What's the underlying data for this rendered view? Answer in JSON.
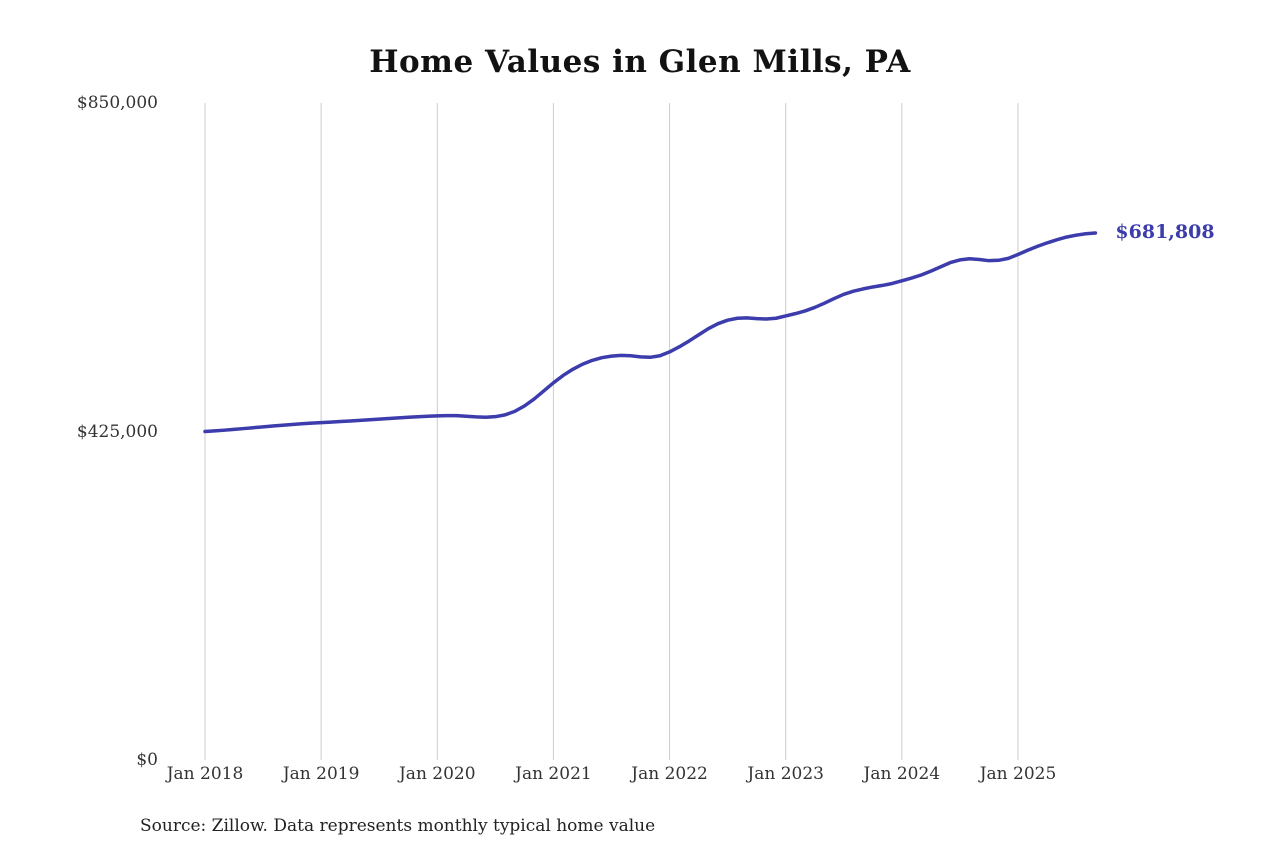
{
  "chart": {
    "title": "Home Values in Glen Mills, PA",
    "source_note": "Source: Zillow. Data represents monthly typical home value",
    "end_label": "$681,808",
    "line_color": "#3c3cac",
    "grid_color": "#cccccc",
    "y_ticks": [
      {
        "label": "$850,000",
        "value": 850000
      },
      {
        "label": "$425,000",
        "value": 425000
      },
      {
        "label": "$0",
        "value": 0
      }
    ],
    "x_ticks": [
      {
        "label": "Jan 2018",
        "month_index": 0
      },
      {
        "label": "Jan 2019",
        "month_index": 12
      },
      {
        "label": "Jan 2020",
        "month_index": 24
      },
      {
        "label": "Jan 2021",
        "month_index": 36
      },
      {
        "label": "Jan 2022",
        "month_index": 48
      },
      {
        "label": "Jan 2023",
        "month_index": 60
      },
      {
        "label": "Jan 2024",
        "month_index": 72
      },
      {
        "label": "Jan 2025",
        "month_index": 84
      }
    ]
  },
  "chart_data": {
    "type": "line",
    "title": "Home Values in Glen Mills, PA",
    "series_name": "Monthly typical home value",
    "xlabel": "",
    "ylabel": "",
    "ylim": [
      0,
      850000
    ],
    "grid": "vertical-only",
    "legend": "none",
    "final_value": 681808,
    "x": [
      "2018-01",
      "2018-02",
      "2018-03",
      "2018-04",
      "2018-05",
      "2018-06",
      "2018-07",
      "2018-08",
      "2018-09",
      "2018-10",
      "2018-11",
      "2018-12",
      "2019-01",
      "2019-02",
      "2019-03",
      "2019-04",
      "2019-05",
      "2019-06",
      "2019-07",
      "2019-08",
      "2019-09",
      "2019-10",
      "2019-11",
      "2019-12",
      "2020-01",
      "2020-02",
      "2020-03",
      "2020-04",
      "2020-05",
      "2020-06",
      "2020-07",
      "2020-08",
      "2020-09",
      "2020-10",
      "2020-11",
      "2020-12",
      "2021-01",
      "2021-02",
      "2021-03",
      "2021-04",
      "2021-05",
      "2021-06",
      "2021-07",
      "2021-08",
      "2021-09",
      "2021-10",
      "2021-11",
      "2021-12",
      "2022-01",
      "2022-02",
      "2022-03",
      "2022-04",
      "2022-05",
      "2022-06",
      "2022-07",
      "2022-08",
      "2022-09",
      "2022-10",
      "2022-11",
      "2022-12",
      "2023-01",
      "2023-02",
      "2023-03",
      "2023-04",
      "2023-05",
      "2023-06",
      "2023-07",
      "2023-08",
      "2023-09",
      "2023-10",
      "2023-11",
      "2023-12",
      "2024-01",
      "2024-02",
      "2024-03",
      "2024-04",
      "2024-05",
      "2024-06",
      "2024-07",
      "2024-08",
      "2024-09",
      "2024-10",
      "2024-11",
      "2024-12",
      "2025-01",
      "2025-02",
      "2025-03",
      "2025-04",
      "2025-05",
      "2025-06",
      "2025-07",
      "2025-08",
      "2025-09"
    ],
    "values": [
      425000,
      425800,
      426700,
      427700,
      428800,
      429900,
      431000,
      432100,
      433100,
      434100,
      435000,
      435800,
      436500,
      437200,
      437900,
      438600,
      439400,
      440200,
      441000,
      441800,
      442600,
      443400,
      444100,
      444700,
      445200,
      445600,
      445500,
      444800,
      443900,
      443500,
      444200,
      446500,
      451000,
      458000,
      467000,
      477500,
      488000,
      497500,
      505500,
      512000,
      517000,
      520500,
      522500,
      523500,
      523000,
      521500,
      521000,
      523000,
      528000,
      534500,
      542000,
      550000,
      558000,
      564500,
      569000,
      571500,
      572000,
      571000,
      570500,
      571500,
      574500,
      577500,
      581000,
      585500,
      591000,
      597000,
      602500,
      606500,
      609500,
      612000,
      614000,
      616500,
      620000,
      623500,
      627500,
      632500,
      638000,
      643500,
      647000,
      648500,
      647500,
      646000,
      646500,
      649000,
      654000,
      659500,
      664500,
      669000,
      673000,
      676500,
      679000,
      680800,
      681808
    ]
  }
}
